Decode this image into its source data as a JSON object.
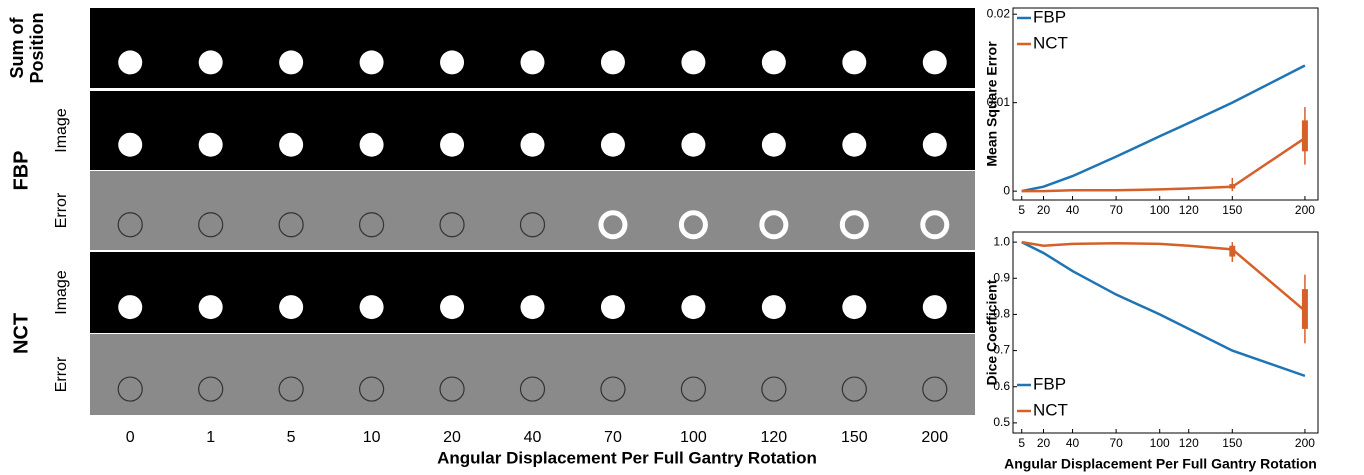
{
  "image_grid": {
    "rows": [
      {
        "group": [
          "Sum of",
          "Position"
        ]
      },
      {
        "group": "FBP",
        "sub": [
          "Image",
          "Error"
        ]
      },
      {
        "group": "NCT",
        "sub": [
          "Image",
          "Error"
        ]
      }
    ],
    "columns": [
      "0",
      "1",
      "5",
      "10",
      "20",
      "40",
      "70",
      "100",
      "120",
      "150",
      "200"
    ],
    "xlabel": "Angular Displacement Per Full Gantry Rotation"
  },
  "chart_data": [
    {
      "type": "line",
      "ylabel": "Mean Square Error",
      "x": [
        5,
        20,
        40,
        70,
        100,
        120,
        150,
        200
      ],
      "series": [
        {
          "name": "FBP",
          "color": "#1f74b4",
          "values": [
            0,
            0.0005,
            0.0017,
            0.0039,
            0.0062,
            0.0077,
            0.01,
            0.0142
          ]
        },
        {
          "name": "NCT",
          "color": "#d6602a",
          "values": [
            0,
            0,
            0.0001,
            0.0001,
            0.0002,
            0.0003,
            0.0005,
            0.006
          ],
          "boxes": [
            {
              "x": 150,
              "low": 0,
              "q1": 0.0003,
              "q3": 0.0008,
              "high": 0.0015
            },
            {
              "x": 200,
              "low": 0.003,
              "q1": 0.0045,
              "q3": 0.008,
              "high": 0.0095
            }
          ]
        }
      ],
      "xlim": [
        -1,
        209
      ],
      "xticks": [
        5,
        20,
        40,
        70,
        100,
        120,
        150,
        200
      ],
      "ylim": [
        -0.001,
        0.0207
      ],
      "yticks": [
        0,
        0.01,
        0.02
      ],
      "legend": "top-left"
    },
    {
      "type": "line",
      "ylabel": "Dice Coefficient",
      "xlabel": "Angular Displacement Per Full Gantry Rotation",
      "x": [
        5,
        20,
        40,
        70,
        100,
        120,
        150,
        200
      ],
      "series": [
        {
          "name": "FBP",
          "color": "#1f74b4",
          "values": [
            1.0,
            0.97,
            0.92,
            0.855,
            0.8,
            0.76,
            0.7,
            0.63
          ]
        },
        {
          "name": "NCT",
          "color": "#d6602a",
          "values": [
            1.0,
            0.99,
            0.995,
            0.997,
            0.995,
            0.99,
            0.98,
            0.81
          ],
          "boxes": [
            {
              "x": 150,
              "low": 0.945,
              "q1": 0.96,
              "q3": 0.99,
              "high": 1.0
            },
            {
              "x": 200,
              "low": 0.72,
              "q1": 0.76,
              "q3": 0.87,
              "high": 0.91
            }
          ]
        }
      ],
      "xlim": [
        -1,
        209
      ],
      "xticks": [
        5,
        20,
        40,
        70,
        100,
        120,
        150,
        200
      ],
      "ylim": [
        0.472,
        1.028
      ],
      "yticks": [
        {
          "value": 0.5,
          "label": "0.5"
        },
        0.6,
        0.7,
        0.8,
        0.9,
        {
          "value": 1.0,
          "label": "1.0"
        }
      ],
      "legend": "bottom-left"
    }
  ]
}
